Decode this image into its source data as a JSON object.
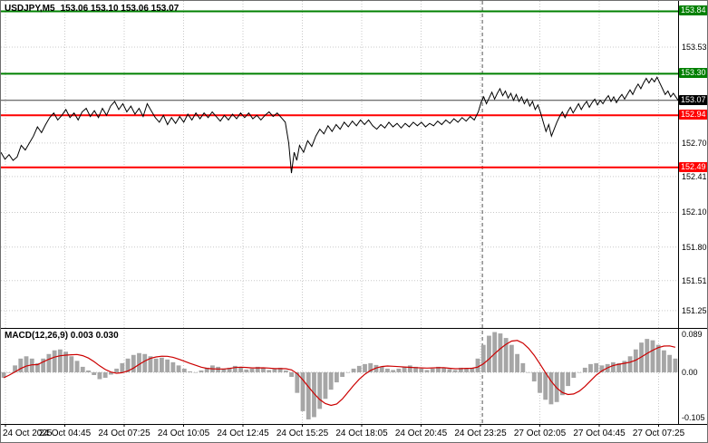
{
  "header": {
    "symbol_period": "USDJPY,M5",
    "ohlc": "153.06 153.10 153.06 153.07"
  },
  "colors": {
    "resistance": "#008000",
    "support": "#ff0000",
    "current_price": "#000000",
    "price_line": "#000000",
    "signal_line": "#cc0000",
    "histogram": "#a6a6a6",
    "grid": "#c9c9c9",
    "separator": "#555555"
  },
  "chart_data": [
    {
      "type": "line",
      "title": "USDJPY,M5",
      "ohlc": {
        "open": "153.06",
        "high": "153.10",
        "low": "153.06",
        "close": "153.07"
      },
      "ylim": [
        151.1,
        153.93
      ],
      "y_ticks": [
        153.53,
        152.7,
        152.41,
        152.1,
        151.8,
        151.51,
        151.25
      ],
      "x_ticks": [
        "24 Oct 2025",
        "24 Oct 04:45",
        "24 Oct 07:25",
        "24 Oct 10:05",
        "24 Oct 12:45",
        "24 Oct 15:25",
        "24 Oct 18:05",
        "24 Oct 20:45",
        "24 Oct 23:25",
        "27 Oct 02:05",
        "27 Oct 04:45",
        "27 Oct 07:25"
      ],
      "levels": [
        {
          "price": 153.84,
          "color": "#008000",
          "kind": "resistance"
        },
        {
          "price": 153.3,
          "color": "#008000",
          "kind": "resistance"
        },
        {
          "price": 153.07,
          "color": "#000000",
          "kind": "current"
        },
        {
          "price": 152.94,
          "color": "#ff0000",
          "kind": "support"
        },
        {
          "price": 152.49,
          "color": "#ff0000",
          "kind": "support"
        }
      ],
      "separator_frac": 0.711,
      "price_points": [
        [
          0.0,
          152.62
        ],
        [
          0.006,
          152.56
        ],
        [
          0.012,
          152.6
        ],
        [
          0.018,
          152.55
        ],
        [
          0.024,
          152.58
        ],
        [
          0.03,
          152.68
        ],
        [
          0.036,
          152.64
        ],
        [
          0.042,
          152.7
        ],
        [
          0.048,
          152.76
        ],
        [
          0.054,
          152.84
        ],
        [
          0.06,
          152.79
        ],
        [
          0.066,
          152.86
        ],
        [
          0.072,
          152.92
        ],
        [
          0.078,
          152.96
        ],
        [
          0.084,
          152.9
        ],
        [
          0.09,
          152.94
        ],
        [
          0.096,
          152.99
        ],
        [
          0.102,
          152.92
        ],
        [
          0.108,
          152.96
        ],
        [
          0.114,
          152.9
        ],
        [
          0.12,
          152.97
        ],
        [
          0.126,
          153.0
        ],
        [
          0.132,
          152.93
        ],
        [
          0.138,
          152.98
        ],
        [
          0.144,
          152.92
        ],
        [
          0.15,
          153.0
        ],
        [
          0.156,
          152.94
        ],
        [
          0.162,
          153.02
        ],
        [
          0.168,
          153.06
        ],
        [
          0.174,
          152.99
        ],
        [
          0.18,
          153.04
        ],
        [
          0.186,
          152.97
        ],
        [
          0.192,
          153.02
        ],
        [
          0.198,
          152.95
        ],
        [
          0.204,
          153.0
        ],
        [
          0.21,
          152.93
        ],
        [
          0.216,
          153.04
        ],
        [
          0.222,
          152.98
        ],
        [
          0.228,
          152.92
        ],
        [
          0.234,
          152.88
        ],
        [
          0.24,
          152.94
        ],
        [
          0.246,
          152.86
        ],
        [
          0.252,
          152.92
        ],
        [
          0.258,
          152.87
        ],
        [
          0.264,
          152.93
        ],
        [
          0.27,
          152.88
        ],
        [
          0.276,
          152.95
        ],
        [
          0.282,
          152.9
        ],
        [
          0.288,
          152.96
        ],
        [
          0.294,
          152.91
        ],
        [
          0.3,
          152.96
        ],
        [
          0.306,
          152.92
        ],
        [
          0.312,
          152.97
        ],
        [
          0.318,
          152.93
        ],
        [
          0.324,
          152.89
        ],
        [
          0.33,
          152.94
        ],
        [
          0.336,
          152.9
        ],
        [
          0.342,
          152.95
        ],
        [
          0.348,
          152.91
        ],
        [
          0.354,
          152.96
        ],
        [
          0.36,
          152.92
        ],
        [
          0.366,
          152.96
        ],
        [
          0.372,
          152.91
        ],
        [
          0.378,
          152.94
        ],
        [
          0.384,
          152.9
        ],
        [
          0.39,
          152.94
        ],
        [
          0.396,
          152.97
        ],
        [
          0.402,
          152.93
        ],
        [
          0.408,
          152.96
        ],
        [
          0.414,
          152.92
        ],
        [
          0.42,
          152.88
        ],
        [
          0.425,
          152.7
        ],
        [
          0.429,
          152.44
        ],
        [
          0.433,
          152.62
        ],
        [
          0.437,
          152.55
        ],
        [
          0.441,
          152.68
        ],
        [
          0.447,
          152.62
        ],
        [
          0.453,
          152.72
        ],
        [
          0.459,
          152.67
        ],
        [
          0.465,
          152.76
        ],
        [
          0.471,
          152.82
        ],
        [
          0.477,
          152.78
        ],
        [
          0.483,
          152.85
        ],
        [
          0.489,
          152.8
        ],
        [
          0.495,
          152.86
        ],
        [
          0.501,
          152.82
        ],
        [
          0.507,
          152.88
        ],
        [
          0.513,
          152.84
        ],
        [
          0.519,
          152.89
        ],
        [
          0.525,
          152.85
        ],
        [
          0.531,
          152.9
        ],
        [
          0.537,
          152.86
        ],
        [
          0.543,
          152.9
        ],
        [
          0.549,
          152.85
        ],
        [
          0.555,
          152.82
        ],
        [
          0.561,
          152.86
        ],
        [
          0.567,
          152.83
        ],
        [
          0.573,
          152.88
        ],
        [
          0.579,
          152.84
        ],
        [
          0.585,
          152.87
        ],
        [
          0.591,
          152.83
        ],
        [
          0.597,
          152.87
        ],
        [
          0.603,
          152.84
        ],
        [
          0.609,
          152.88
        ],
        [
          0.615,
          152.85
        ],
        [
          0.621,
          152.88
        ],
        [
          0.627,
          152.84
        ],
        [
          0.633,
          152.87
        ],
        [
          0.639,
          152.85
        ],
        [
          0.645,
          152.89
        ],
        [
          0.651,
          152.86
        ],
        [
          0.657,
          152.9
        ],
        [
          0.663,
          152.87
        ],
        [
          0.669,
          152.91
        ],
        [
          0.675,
          152.88
        ],
        [
          0.681,
          152.92
        ],
        [
          0.687,
          152.89
        ],
        [
          0.693,
          152.93
        ],
        [
          0.699,
          152.9
        ],
        [
          0.705,
          152.97
        ],
        [
          0.709,
          153.05
        ],
        [
          0.713,
          153.1
        ],
        [
          0.717,
          153.04
        ],
        [
          0.721,
          153.09
        ],
        [
          0.725,
          153.14
        ],
        [
          0.729,
          153.08
        ],
        [
          0.733,
          153.13
        ],
        [
          0.737,
          153.17
        ],
        [
          0.741,
          153.11
        ],
        [
          0.745,
          153.15
        ],
        [
          0.749,
          153.09
        ],
        [
          0.753,
          153.13
        ],
        [
          0.757,
          153.07
        ],
        [
          0.761,
          153.12
        ],
        [
          0.765,
          153.06
        ],
        [
          0.769,
          153.1
        ],
        [
          0.773,
          153.04
        ],
        [
          0.777,
          153.08
        ],
        [
          0.781,
          153.02
        ],
        [
          0.785,
          153.06
        ],
        [
          0.789,
          152.99
        ],
        [
          0.793,
          153.03
        ],
        [
          0.797,
          152.96
        ],
        [
          0.801,
          152.88
        ],
        [
          0.805,
          152.8
        ],
        [
          0.809,
          152.86
        ],
        [
          0.813,
          152.76
        ],
        [
          0.817,
          152.82
        ],
        [
          0.821,
          152.88
        ],
        [
          0.825,
          152.93
        ],
        [
          0.829,
          152.97
        ],
        [
          0.833,
          152.92
        ],
        [
          0.837,
          152.97
        ],
        [
          0.841,
          153.01
        ],
        [
          0.845,
          152.96
        ],
        [
          0.849,
          153.0
        ],
        [
          0.853,
          153.04
        ],
        [
          0.857,
          152.99
        ],
        [
          0.861,
          153.03
        ],
        [
          0.865,
          153.06
        ],
        [
          0.869,
          153.01
        ],
        [
          0.873,
          153.05
        ],
        [
          0.877,
          153.08
        ],
        [
          0.881,
          153.03
        ],
        [
          0.885,
          153.07
        ],
        [
          0.889,
          153.04
        ],
        [
          0.893,
          153.08
        ],
        [
          0.897,
          153.11
        ],
        [
          0.901,
          153.06
        ],
        [
          0.905,
          153.1
        ],
        [
          0.909,
          153.05
        ],
        [
          0.913,
          153.09
        ],
        [
          0.917,
          153.12
        ],
        [
          0.921,
          153.08
        ],
        [
          0.925,
          153.12
        ],
        [
          0.929,
          153.16
        ],
        [
          0.933,
          153.12
        ],
        [
          0.937,
          153.17
        ],
        [
          0.941,
          153.21
        ],
        [
          0.945,
          153.17
        ],
        [
          0.949,
          153.22
        ],
        [
          0.953,
          153.26
        ],
        [
          0.957,
          153.22
        ],
        [
          0.961,
          153.26
        ],
        [
          0.965,
          153.23
        ],
        [
          0.969,
          153.27
        ],
        [
          0.973,
          153.22
        ],
        [
          0.977,
          153.17
        ],
        [
          0.981,
          153.12
        ],
        [
          0.985,
          153.15
        ],
        [
          0.989,
          153.1
        ],
        [
          0.993,
          153.13
        ],
        [
          1.0,
          153.07
        ]
      ]
    },
    {
      "type": "macd",
      "label": "MACD(12,26,9) 0.003 0.030",
      "name": "MACD(12,26,9)",
      "values_text": "0.003 0.030",
      "ylim": [
        -0.113,
        0.097
      ],
      "y_ticks": [
        {
          "label": "0.089",
          "value": 0.089
        },
        {
          "label": "0.00",
          "value": 0.0
        },
        {
          "label": "-0.105",
          "value": -0.105
        }
      ],
      "signal_window": 7,
      "histogram": [
        -0.012,
        0.0,
        0.015,
        0.03,
        0.035,
        0.03,
        0.02,
        0.03,
        0.04,
        0.048,
        0.05,
        0.045,
        0.035,
        0.025,
        0.012,
        0.004,
        -0.006,
        -0.015,
        -0.012,
        -0.005,
        0.008,
        0.02,
        0.03,
        0.038,
        0.042,
        0.04,
        0.035,
        0.03,
        0.032,
        0.028,
        0.022,
        0.015,
        0.008,
        0.002,
        0.0,
        0.004,
        0.01,
        0.015,
        0.012,
        0.008,
        0.01,
        0.014,
        0.01,
        0.006,
        0.008,
        0.012,
        0.009,
        0.005,
        0.007,
        0.01,
        0.004,
        -0.01,
        -0.045,
        -0.085,
        -0.103,
        -0.098,
        -0.08,
        -0.058,
        -0.038,
        -0.022,
        -0.01,
        0.0,
        0.008,
        0.014,
        0.018,
        0.02,
        0.016,
        0.012,
        0.008,
        0.005,
        0.008,
        0.012,
        0.015,
        0.012,
        0.008,
        0.005,
        0.008,
        0.012,
        0.01,
        0.007,
        0.005,
        0.01,
        0.008,
        0.01,
        0.03,
        0.06,
        0.08,
        0.088,
        0.085,
        0.075,
        0.06,
        0.04,
        0.02,
        0.0,
        -0.02,
        -0.045,
        -0.06,
        -0.07,
        -0.065,
        -0.05,
        -0.03,
        -0.012,
        0.0,
        0.01,
        0.018,
        0.02,
        0.015,
        0.018,
        0.022,
        0.02,
        0.025,
        0.035,
        0.05,
        0.065,
        0.073,
        0.07,
        0.06,
        0.048,
        0.038,
        0.03
      ]
    }
  ]
}
